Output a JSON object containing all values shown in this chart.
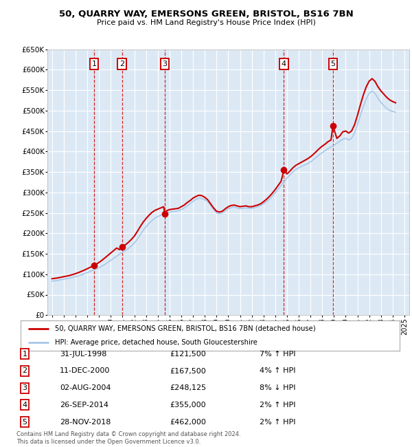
{
  "title": "50, QUARRY WAY, EMERSONS GREEN, BRISTOL, BS16 7BN",
  "subtitle": "Price paid vs. HM Land Registry's House Price Index (HPI)",
  "ylim": [
    0,
    650000
  ],
  "yticks": [
    0,
    50000,
    100000,
    150000,
    200000,
    250000,
    300000,
    350000,
    400000,
    450000,
    500000,
    550000,
    600000,
    650000
  ],
  "xlim_start": 1994.6,
  "xlim_end": 2025.4,
  "plot_bg": "#dce9f5",
  "grid_color": "#ffffff",
  "sale_color": "#cc0000",
  "hpi_line_color": "#a8c8e8",
  "property_line_color": "#cc0000",
  "sale_marker_color": "#cc0000",
  "sales": [
    {
      "num": 1,
      "year": 1998.58,
      "price": 121500,
      "date": "31-JUL-1998",
      "pct": "7%",
      "dir": "↑"
    },
    {
      "num": 2,
      "year": 2000.95,
      "price": 167500,
      "date": "11-DEC-2000",
      "pct": "4%",
      "dir": "↑"
    },
    {
      "num": 3,
      "year": 2004.59,
      "price": 248125,
      "date": "02-AUG-2004",
      "pct": "8%",
      "dir": "↓"
    },
    {
      "num": 4,
      "year": 2014.74,
      "price": 355000,
      "date": "26-SEP-2014",
      "pct": "2%",
      "dir": "↑"
    },
    {
      "num": 5,
      "year": 2018.91,
      "price": 462000,
      "date": "28-NOV-2018",
      "pct": "2%",
      "dir": "↑"
    }
  ],
  "legend_property": "50, QUARRY WAY, EMERSONS GREEN, BRISTOL, BS16 7BN (detached house)",
  "legend_hpi": "HPI: Average price, detached house, South Gloucestershire",
  "footer": "Contains HM Land Registry data © Crown copyright and database right 2024.\nThis data is licensed under the Open Government Licence v3.0.",
  "hpi_x": [
    1995.0,
    1995.25,
    1995.5,
    1995.75,
    1996.0,
    1996.25,
    1996.5,
    1996.75,
    1997.0,
    1997.25,
    1997.5,
    1997.75,
    1998.0,
    1998.25,
    1998.5,
    1998.75,
    1999.0,
    1999.25,
    1999.5,
    1999.75,
    2000.0,
    2000.25,
    2000.5,
    2000.75,
    2001.0,
    2001.25,
    2001.5,
    2001.75,
    2002.0,
    2002.25,
    2002.5,
    2002.75,
    2003.0,
    2003.25,
    2003.5,
    2003.75,
    2004.0,
    2004.25,
    2004.5,
    2004.75,
    2005.0,
    2005.25,
    2005.5,
    2005.75,
    2006.0,
    2006.25,
    2006.5,
    2006.75,
    2007.0,
    2007.25,
    2007.5,
    2007.75,
    2008.0,
    2008.25,
    2008.5,
    2008.75,
    2009.0,
    2009.25,
    2009.5,
    2009.75,
    2010.0,
    2010.25,
    2010.5,
    2010.75,
    2011.0,
    2011.25,
    2011.5,
    2011.75,
    2012.0,
    2012.25,
    2012.5,
    2012.75,
    2013.0,
    2013.25,
    2013.5,
    2013.75,
    2014.0,
    2014.25,
    2014.5,
    2014.75,
    2015.0,
    2015.25,
    2015.5,
    2015.75,
    2016.0,
    2016.25,
    2016.5,
    2016.75,
    2017.0,
    2017.25,
    2017.5,
    2017.75,
    2018.0,
    2018.25,
    2018.5,
    2018.75,
    2019.0,
    2019.25,
    2019.5,
    2019.75,
    2020.0,
    2020.25,
    2020.5,
    2020.75,
    2021.0,
    2021.25,
    2021.5,
    2021.75,
    2022.0,
    2022.25,
    2022.5,
    2022.75,
    2023.0,
    2023.25,
    2023.5,
    2023.75,
    2024.0,
    2024.25
  ],
  "hpi_avg": [
    83000,
    84000,
    85000,
    86500,
    88000,
    89000,
    90500,
    92000,
    94000,
    96000,
    98500,
    101000,
    104000,
    107000,
    110000,
    113000,
    116000,
    120000,
    124000,
    129000,
    134000,
    139000,
    144000,
    149000,
    154000,
    158000,
    163000,
    169000,
    176000,
    185000,
    196000,
    207000,
    216000,
    224000,
    231000,
    237000,
    241000,
    244000,
    247000,
    250000,
    252000,
    253000,
    254000,
    255000,
    258000,
    262000,
    267000,
    272000,
    278000,
    283000,
    286000,
    285000,
    282000,
    277000,
    268000,
    258000,
    250000,
    248000,
    250000,
    255000,
    260000,
    263000,
    264000,
    262000,
    260000,
    261000,
    262000,
    261000,
    261000,
    263000,
    265000,
    268000,
    272000,
    277000,
    283000,
    291000,
    299000,
    308000,
    317000,
    326000,
    335000,
    343000,
    350000,
    356000,
    360000,
    364000,
    367000,
    370000,
    374000,
    380000,
    386000,
    392000,
    397000,
    402000,
    407000,
    411000,
    415000,
    420000,
    425000,
    430000,
    432000,
    428000,
    432000,
    445000,
    465000,
    488000,
    510000,
    528000,
    542000,
    548000,
    542000,
    530000,
    520000,
    512000,
    505000,
    500000,
    498000,
    496000
  ],
  "prop_x": [
    1995.0,
    1995.25,
    1995.5,
    1995.75,
    1996.0,
    1996.25,
    1996.5,
    1996.75,
    1997.0,
    1997.25,
    1997.5,
    1997.75,
    1998.0,
    1998.25,
    1998.5,
    1998.58,
    1998.75,
    1999.0,
    1999.25,
    1999.5,
    1999.75,
    2000.0,
    2000.25,
    2000.5,
    2000.75,
    2000.95,
    2001.25,
    2001.5,
    2001.75,
    2002.0,
    2002.25,
    2002.5,
    2002.75,
    2003.0,
    2003.25,
    2003.5,
    2003.75,
    2004.0,
    2004.25,
    2004.5,
    2004.59,
    2004.75,
    2005.0,
    2005.25,
    2005.5,
    2005.75,
    2006.0,
    2006.25,
    2006.5,
    2006.75,
    2007.0,
    2007.25,
    2007.5,
    2007.75,
    2008.0,
    2008.25,
    2008.5,
    2008.75,
    2009.0,
    2009.25,
    2009.5,
    2009.75,
    2010.0,
    2010.25,
    2010.5,
    2010.75,
    2011.0,
    2011.25,
    2011.5,
    2011.75,
    2012.0,
    2012.25,
    2012.5,
    2012.75,
    2013.0,
    2013.25,
    2013.5,
    2013.75,
    2014.0,
    2014.25,
    2014.5,
    2014.74,
    2015.0,
    2015.25,
    2015.5,
    2015.75,
    2016.0,
    2016.25,
    2016.5,
    2016.75,
    2017.0,
    2017.25,
    2017.5,
    2017.75,
    2018.0,
    2018.25,
    2018.5,
    2018.75,
    2018.91,
    2019.25,
    2019.5,
    2019.75,
    2020.0,
    2020.25,
    2020.5,
    2020.75,
    2021.0,
    2021.25,
    2021.5,
    2021.75,
    2022.0,
    2022.25,
    2022.5,
    2022.75,
    2023.0,
    2023.25,
    2023.5,
    2023.75,
    2024.0,
    2024.25
  ],
  "prop_vals": [
    89000,
    90000,
    91000,
    92500,
    94000,
    95500,
    97000,
    99000,
    101500,
    104000,
    107000,
    110000,
    113500,
    117000,
    120000,
    121500,
    124000,
    129000,
    134000,
    140000,
    146000,
    152000,
    158000,
    164000,
    160000,
    167500,
    172000,
    178000,
    185000,
    193000,
    204000,
    216000,
    227000,
    236000,
    244000,
    251000,
    256000,
    259000,
    262000,
    265000,
    248125,
    255000,
    258000,
    259000,
    260000,
    261000,
    265000,
    269000,
    275000,
    280000,
    286000,
    290000,
    293000,
    292000,
    288000,
    282000,
    272000,
    262000,
    254000,
    252000,
    254000,
    260000,
    265000,
    268000,
    269000,
    267000,
    265000,
    266000,
    267000,
    265000,
    265000,
    267000,
    269000,
    272000,
    277000,
    283000,
    290000,
    298000,
    307000,
    317000,
    327000,
    355000,
    345000,
    352000,
    360000,
    366000,
    370000,
    374000,
    378000,
    382000,
    387000,
    393000,
    400000,
    407000,
    413000,
    418000,
    424000,
    428000,
    462000,
    432000,
    438000,
    448000,
    450000,
    445000,
    450000,
    465000,
    488000,
    514000,
    538000,
    558000,
    572000,
    578000,
    571000,
    558000,
    548000,
    540000,
    532000,
    526000,
    522000,
    519000
  ]
}
